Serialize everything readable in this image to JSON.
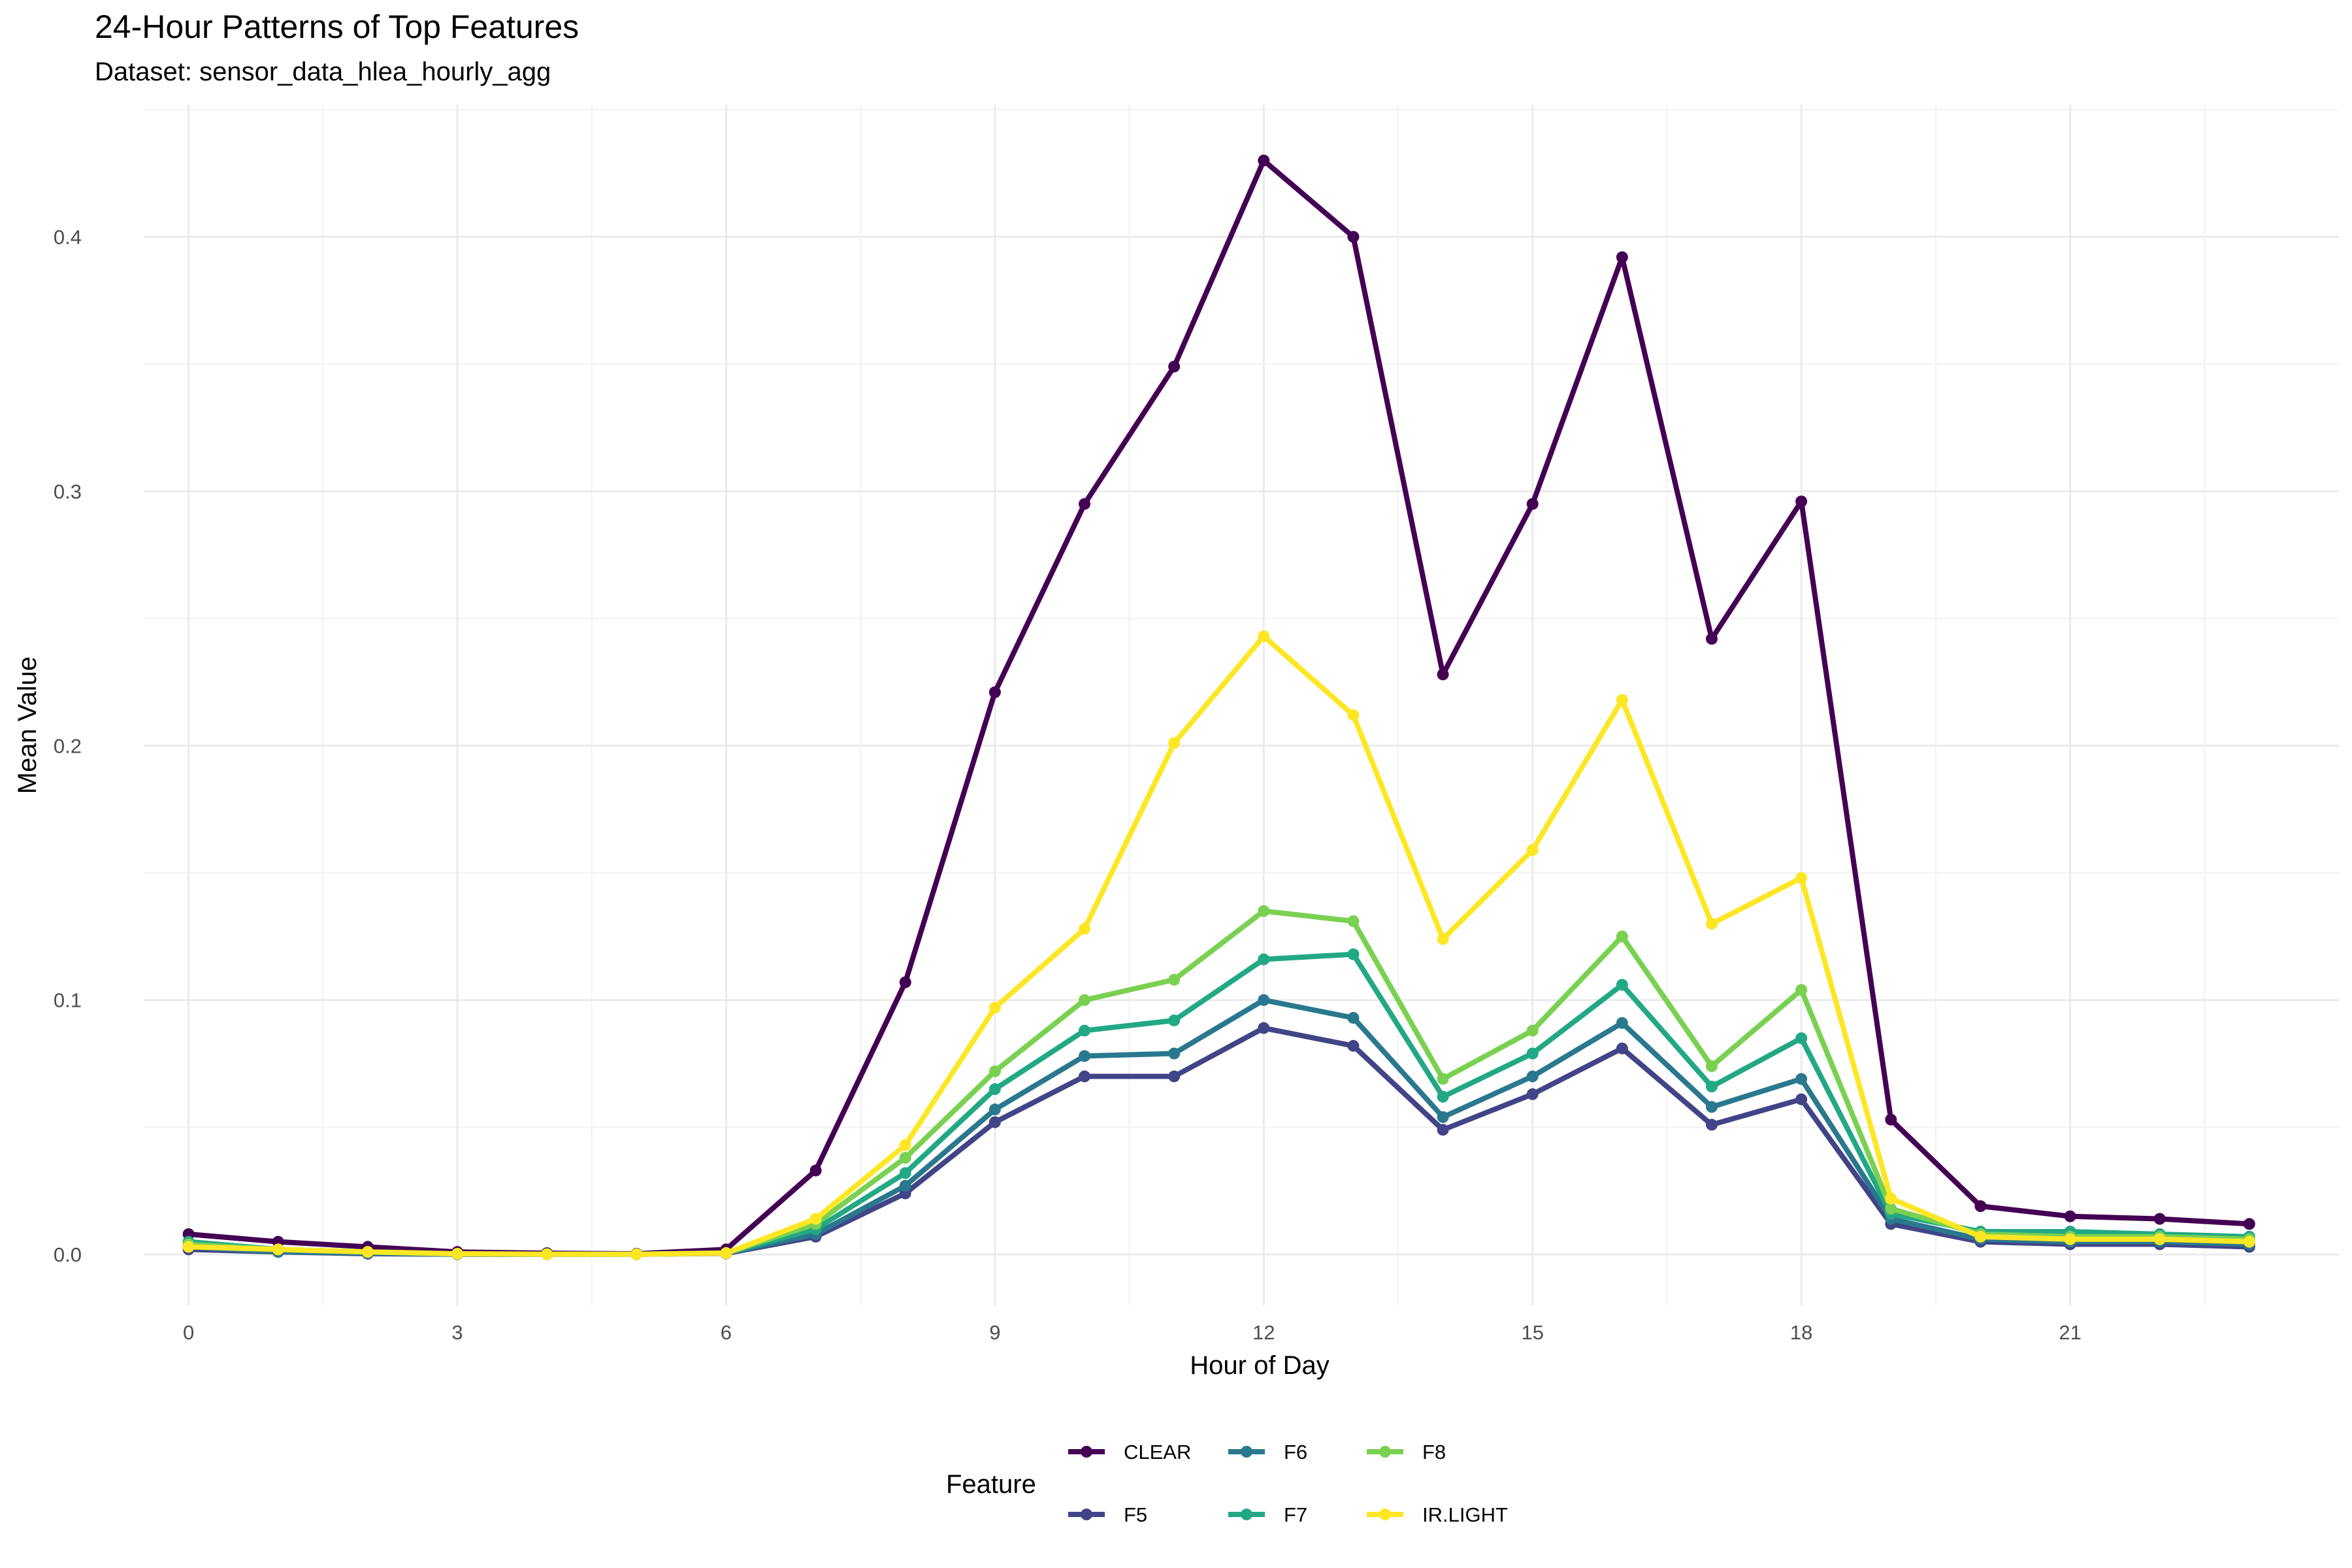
{
  "chart_data": {
    "type": "line",
    "title": "24-Hour Patterns of Top Features",
    "subtitle": "Dataset: sensor_data_hlea_hourly_agg",
    "xlabel": "Hour of Day",
    "ylabel": "Mean Value",
    "xlim": [
      -0.5,
      24.0
    ],
    "ylim": [
      -0.02,
      0.452
    ],
    "x_ticks": [
      0,
      3,
      6,
      9,
      12,
      15,
      18,
      21
    ],
    "y_ticks": [
      0.0,
      0.1,
      0.2,
      0.3,
      0.4
    ],
    "y_tick_labels": [
      "0.0",
      "0.1",
      "0.2",
      "0.3",
      "0.4"
    ],
    "grid": true,
    "legend_title": "Feature",
    "legend_position": "bottom",
    "x": [
      0,
      1,
      2,
      3,
      4,
      5,
      6,
      7,
      8,
      9,
      10,
      11,
      12,
      13,
      14,
      15,
      16,
      17,
      18,
      19,
      20,
      21,
      22,
      23
    ],
    "series": [
      {
        "name": "CLEAR",
        "color": "#440154",
        "values": [
          0.008,
          0.005,
          0.003,
          0.001,
          0.0005,
          0.0003,
          0.002,
          0.033,
          0.107,
          0.221,
          0.295,
          0.349,
          0.43,
          0.4,
          0.228,
          0.295,
          0.392,
          0.242,
          0.296,
          0.053,
          0.019,
          0.015,
          0.014,
          0.012
        ]
      },
      {
        "name": "F5",
        "color": "#414487",
        "values": [
          0.002,
          0.001,
          0.0003,
          0.0001,
          0.0001,
          0.0001,
          0.0004,
          0.007,
          0.024,
          0.052,
          0.07,
          0.07,
          0.089,
          0.082,
          0.049,
          0.063,
          0.081,
          0.051,
          0.061,
          0.012,
          0.005,
          0.004,
          0.004,
          0.003
        ]
      },
      {
        "name": "F6",
        "color": "#2A788E",
        "values": [
          0.003,
          0.001,
          0.0005,
          0.0001,
          0.0001,
          0.0001,
          0.0005,
          0.008,
          0.027,
          0.057,
          0.078,
          0.079,
          0.1,
          0.093,
          0.054,
          0.07,
          0.091,
          0.058,
          0.069,
          0.014,
          0.006,
          0.005,
          0.005,
          0.004
        ]
      },
      {
        "name": "F7",
        "color": "#22A884",
        "values": [
          0.005,
          0.002,
          0.001,
          0.0002,
          0.0001,
          0.0001,
          0.0006,
          0.01,
          0.032,
          0.065,
          0.088,
          0.092,
          0.116,
          0.118,
          0.062,
          0.079,
          0.106,
          0.066,
          0.085,
          0.016,
          0.009,
          0.009,
          0.008,
          0.007
        ]
      },
      {
        "name": "F8",
        "color": "#7AD151",
        "values": [
          0.004,
          0.002,
          0.001,
          0.0002,
          0.0001,
          0.0001,
          0.0006,
          0.012,
          0.038,
          0.072,
          0.1,
          0.108,
          0.135,
          0.131,
          0.069,
          0.088,
          0.125,
          0.074,
          0.104,
          0.018,
          0.008,
          0.007,
          0.007,
          0.006
        ]
      },
      {
        "name": "IR.LIGHT",
        "color": "#FDE725",
        "values": [
          0.003,
          0.002,
          0.001,
          0.0003,
          0.0001,
          0.0001,
          0.0005,
          0.014,
          0.043,
          0.097,
          0.128,
          0.201,
          0.243,
          0.212,
          0.124,
          0.159,
          0.218,
          0.13,
          0.148,
          0.022,
          0.007,
          0.006,
          0.006,
          0.005
        ]
      }
    ],
    "legend_layout": [
      [
        "CLEAR",
        "F6",
        "F8"
      ],
      [
        "F5",
        "F7",
        "IR.LIGHT"
      ]
    ]
  }
}
